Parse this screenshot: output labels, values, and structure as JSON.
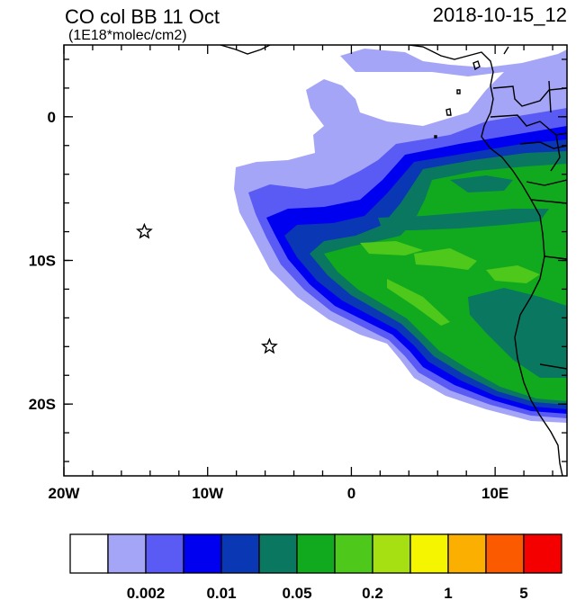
{
  "title": "CO col BB 11 Oct",
  "units": "(1E18*molec/cm2)",
  "timestamp": "2018-10-15_12",
  "x_axis": {
    "ticks": [
      {
        "value": -20,
        "label": "20W"
      },
      {
        "value": -10,
        "label": "10W"
      },
      {
        "value": 0,
        "label": "0"
      },
      {
        "value": 10,
        "label": "10E"
      }
    ],
    "range": [
      -20,
      15
    ]
  },
  "y_axis": {
    "ticks": [
      {
        "value": 0,
        "label": "0"
      },
      {
        "value": -10,
        "label": "10S"
      },
      {
        "value": -20,
        "label": "20S"
      }
    ],
    "range": [
      -25,
      5
    ]
  },
  "markers": [
    {
      "name": "star",
      "lon": -14.4,
      "lat": -8.0
    },
    {
      "name": "star",
      "lon": -5.7,
      "lat": -16.0
    }
  ],
  "colorbar": {
    "colors": [
      "#ffffff",
      "#a5a5f8",
      "#5a5af5",
      "#0000f0",
      "#0a37b4",
      "#0a7860",
      "#11aa1e",
      "#4ec81a",
      "#a6e012",
      "#f5f500",
      "#fbaf00",
      "#fb5a00",
      "#f50000"
    ],
    "labels": [
      {
        "after_box": 2,
        "text": "0.002"
      },
      {
        "after_box": 4,
        "text": "0.01"
      },
      {
        "after_box": 6,
        "text": "0.05"
      },
      {
        "after_box": 8,
        "text": "0.2"
      },
      {
        "after_box": 10,
        "text": "1"
      },
      {
        "after_box": 12,
        "text": "5"
      }
    ]
  }
}
